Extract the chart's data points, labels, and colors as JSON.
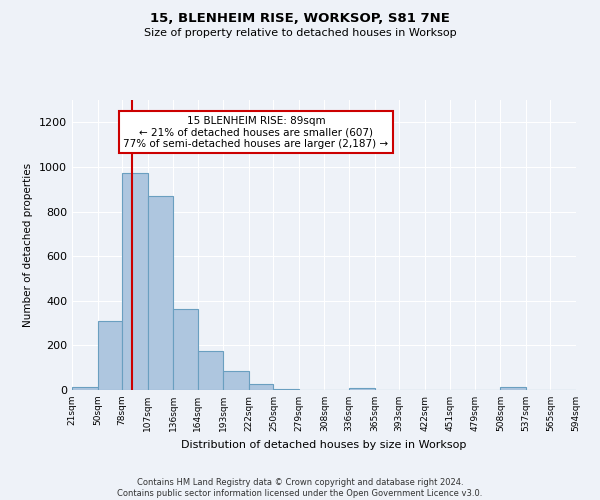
{
  "title1": "15, BLENHEIM RISE, WORKSOP, S81 7NE",
  "title2": "Size of property relative to detached houses in Worksop",
  "xlabel": "Distribution of detached houses by size in Worksop",
  "ylabel": "Number of detached properties",
  "annotation_line1": "15 BLENHEIM RISE: 89sqm",
  "annotation_line2": "← 21% of detached houses are smaller (607)",
  "annotation_line3": "77% of semi-detached houses are larger (2,187) →",
  "bin_edges": [
    21,
    50,
    78,
    107,
    136,
    164,
    193,
    222,
    250,
    279,
    308,
    336,
    365,
    393,
    422,
    451,
    479,
    508,
    537,
    565,
    594
  ],
  "bar_heights": [
    15,
    310,
    975,
    870,
    365,
    175,
    85,
    25,
    5,
    0,
    0,
    10,
    0,
    0,
    0,
    0,
    0,
    12,
    0,
    0
  ],
  "bar_color": "#aec6df",
  "bar_edge_color": "#6a9fc0",
  "red_line_x": 89,
  "ylim": [
    0,
    1300
  ],
  "yticks": [
    0,
    200,
    400,
    600,
    800,
    1000,
    1200
  ],
  "background_color": "#eef2f8",
  "grid_color": "#ffffff",
  "annotation_box_color": "#ffffff",
  "annotation_box_edge_color": "#cc0000",
  "red_line_color": "#cc0000",
  "footer": "Contains HM Land Registry data © Crown copyright and database right 2024.\nContains public sector information licensed under the Open Government Licence v3.0.",
  "tick_labels": [
    "21sqm",
    "50sqm",
    "78sqm",
    "107sqm",
    "136sqm",
    "164sqm",
    "193sqm",
    "222sqm",
    "250sqm",
    "279sqm",
    "308sqm",
    "336sqm",
    "365sqm",
    "393sqm",
    "422sqm",
    "451sqm",
    "479sqm",
    "508sqm",
    "537sqm",
    "565sqm",
    "594sqm"
  ]
}
